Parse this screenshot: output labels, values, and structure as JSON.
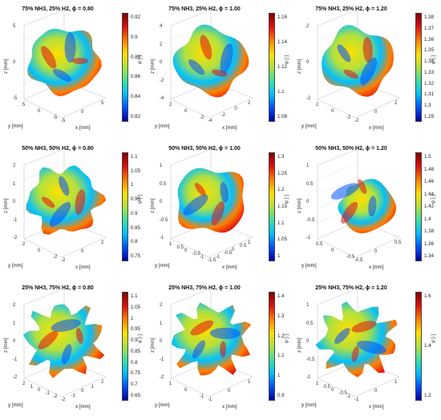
{
  "figure": {
    "colormap": [
      "#0000a0",
      "#0050ff",
      "#00c0ff",
      "#40e0a0",
      "#b0e040",
      "#ffe000",
      "#ff8000",
      "#e01010",
      "#800000"
    ],
    "colorbar_label": "φ [-]",
    "panels": [
      {
        "title": "75% NH3, 25% H2, ϕ = 0.80",
        "cb_ticks": [
          "0.92",
          "0.9",
          "0.88",
          "0.86",
          "0.84",
          "0.82"
        ],
        "z_ticks": [
          "5",
          "0",
          "-5"
        ],
        "y_ticks": [
          "5",
          "0",
          "-5"
        ],
        "x_ticks": [
          "-5",
          "0",
          "5"
        ],
        "zlabel": "z [mm]",
        "ylabel": "y [mm]",
        "xlabel": "x [mm]",
        "blob": "round"
      },
      {
        "title": "75% NH3, 25% H2, ϕ = 1.00",
        "cb_ticks": [
          "1.16",
          "1.14",
          "1.12",
          "1.1",
          "1.08"
        ],
        "z_ticks": [
          "4",
          "2",
          "0",
          "-2",
          "-4"
        ],
        "y_ticks": [
          "2",
          "0",
          "-2"
        ],
        "x_ticks": [
          "-4",
          "-2",
          "0",
          "2"
        ],
        "zlabel": "z [mm]",
        "ylabel": "y [mm]",
        "xlabel": "x [mm]",
        "blob": "square"
      },
      {
        "title": "75% NH3, 25% H2, ϕ = 1.20",
        "cb_ticks": [
          "1.38",
          "1.37",
          "1.36",
          "1.35",
          "1.34",
          "1.33",
          "1.32",
          "1.31",
          "1.3",
          "1.29"
        ],
        "z_ticks": [
          "2",
          "0",
          "-2"
        ],
        "y_ticks": [
          "2",
          "0",
          "-2"
        ],
        "x_ticks": [
          "-2",
          "0",
          "2"
        ],
        "zlabel": "z [mm]",
        "ylabel": "y [mm]",
        "xlabel": "x [mm]",
        "blob": "square"
      },
      {
        "title": "50% NH3, 50% H2, ϕ = 0.80",
        "cb_ticks": [
          "1.1",
          "1.05",
          "1",
          "0.95",
          "0.9",
          "0.85",
          "0.8",
          "0.75"
        ],
        "z_ticks": [
          "2",
          "1",
          "0",
          "-1",
          "-2"
        ],
        "y_ticks": [
          "2",
          "0",
          "-2"
        ],
        "x_ticks": [
          "-2",
          "0",
          "2"
        ],
        "zlabel": "z [mm]",
        "ylabel": "y [mm]",
        "xlabel": "x [mm]",
        "blob": "ridged"
      },
      {
        "title": "50% NH3, 50% H2, ϕ = 1.00",
        "cb_ticks": [
          "1.3",
          "1.25",
          "1.2",
          "1.15",
          "1.1",
          "1.05",
          "1"
        ],
        "z_ticks": [
          "1",
          "0.5",
          "0",
          "-0.5",
          "-1"
        ],
        "y_ticks": [
          "1",
          "0.5",
          "0",
          "-0.5",
          "-1"
        ],
        "x_ticks": [
          "-1.5",
          "-1",
          "-0.5",
          "0",
          "0.5",
          "1"
        ],
        "zlabel": "z [mm]",
        "ylabel": "y [mm]",
        "xlabel": "x [mm]",
        "blob": "square"
      },
      {
        "title": "50% NH3, 50% H2, ϕ = 1.20",
        "cb_ticks": [
          "1.5",
          "1.48",
          "1.46",
          "1.44",
          "1.42",
          "1.4",
          "1.38",
          "1.36",
          "1.34"
        ],
        "z_ticks": [
          "1",
          "0.5",
          "0",
          "-0.5",
          "-1"
        ],
        "y_ticks": [
          "0.5",
          "0",
          "-0.5"
        ],
        "x_ticks": [
          "-0.5",
          "0",
          "0.5"
        ],
        "zlabel": "z [mm]",
        "ylabel": "y [mm]",
        "xlabel": "x [mm]",
        "blob": "wedge"
      },
      {
        "title": "25% NH3, 75% H2, ϕ = 0.80",
        "cb_ticks": [
          "1.1",
          "1.05",
          "1",
          "0.95",
          "0.9",
          "0.85",
          "0.8",
          "0.75",
          "0.7",
          "0.65"
        ],
        "z_ticks": [
          "2",
          "1",
          "0",
          "-1",
          "-2"
        ],
        "y_ticks": [
          "2",
          "1",
          "0",
          "-1",
          "-2"
        ],
        "x_ticks": [
          "-2",
          "-1",
          "0",
          "1",
          "2"
        ],
        "zlabel": "z [mm]",
        "ylabel": "y [mm]",
        "xlabel": "x [mm]",
        "blob": "spiky"
      },
      {
        "title": "25% NH3, 75% H2, ϕ = 1.00",
        "cb_ticks": [
          "1.4",
          "1.3",
          "1.2",
          "1.1",
          "1",
          "0.9"
        ],
        "z_ticks": [
          "2",
          "1",
          "0",
          "-1",
          "-2"
        ],
        "y_ticks": [
          "1",
          "0",
          "-1"
        ],
        "x_ticks": [
          "-1",
          "0",
          "1"
        ],
        "zlabel": "z [mm]",
        "ylabel": "y [mm]",
        "xlabel": "x [mm]",
        "blob": "spiky"
      },
      {
        "title": "25% NH3, 75% H2, ϕ = 1.20",
        "cb_ticks": [
          "1.6",
          "1.4",
          "1.2"
        ],
        "z_ticks": [
          "1",
          "0.5",
          "0",
          "-0.5",
          "-1"
        ],
        "y_ticks": [
          "1",
          "0.5",
          "0",
          "-0.5",
          "-1"
        ],
        "x_ticks": [
          "-1",
          "0",
          "1"
        ],
        "zlabel": "z [mm]",
        "ylabel": "y [mm]",
        "xlabel": "x [mm]",
        "blob": "spiky"
      }
    ]
  }
}
